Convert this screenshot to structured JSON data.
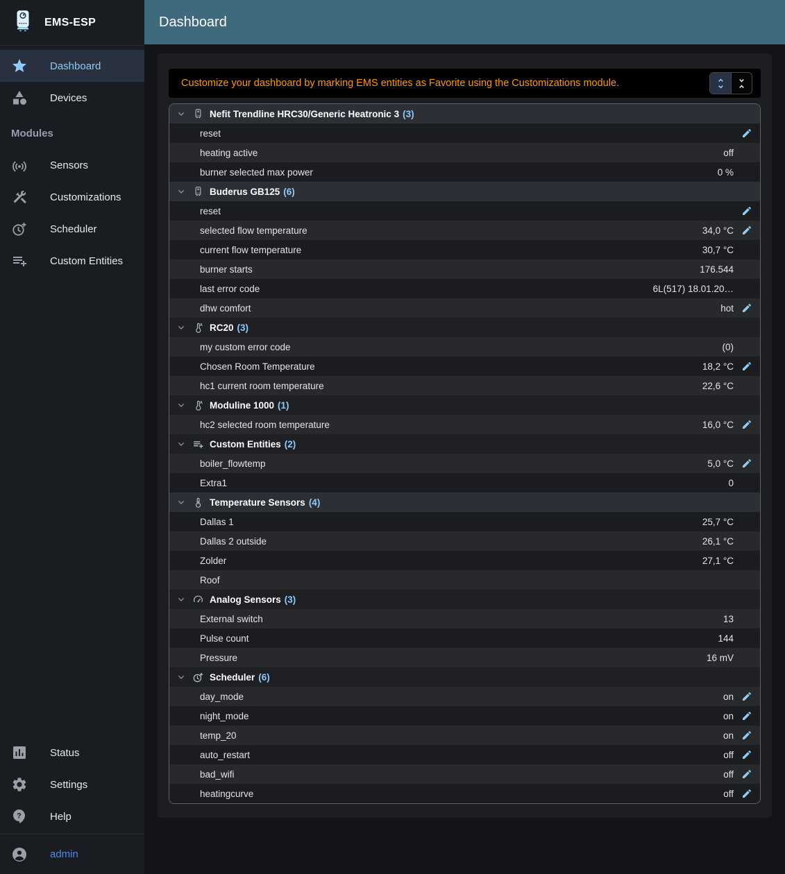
{
  "app": {
    "name": "EMS-ESP"
  },
  "appbar": {
    "title": "Dashboard"
  },
  "sidebar": {
    "main_items": [
      {
        "label": "Dashboard",
        "icon": "star",
        "active": true
      },
      {
        "label": "Devices",
        "icon": "category",
        "active": false
      }
    ],
    "section_label": "Modules",
    "module_items": [
      {
        "label": "Sensors",
        "icon": "sensors"
      },
      {
        "label": "Customizations",
        "icon": "construction"
      },
      {
        "label": "Scheduler",
        "icon": "more-time"
      },
      {
        "label": "Custom Entities",
        "icon": "playlist-add"
      }
    ],
    "bottom_items": [
      {
        "label": "Status",
        "icon": "assessment"
      },
      {
        "label": "Settings",
        "icon": "settings"
      },
      {
        "label": "Help",
        "icon": "help"
      }
    ],
    "user": {
      "label": "admin",
      "icon": "account-circle"
    }
  },
  "notice": {
    "text": "Customize your dashboard by marking EMS entities as Favorite using the Customizations module.",
    "controls": [
      {
        "name": "expand-all",
        "icon": "unfold-more",
        "selected": true
      },
      {
        "name": "collapse-all",
        "icon": "unfold-less",
        "selected": false
      }
    ]
  },
  "dashboard": {
    "groups": [
      {
        "name": "Nefit Trendline HRC30/Generic Heatronic 3",
        "count": 3,
        "icon": "water-heater",
        "rows": [
          {
            "label": "reset",
            "value": "",
            "editable": true
          },
          {
            "label": "heating active",
            "value": "off",
            "editable": false
          },
          {
            "label": "burner selected max power",
            "value": "0 %",
            "editable": false
          }
        ]
      },
      {
        "name": "Buderus GB125",
        "count": 6,
        "icon": "water-heater",
        "rows": [
          {
            "label": "reset",
            "value": "",
            "editable": true
          },
          {
            "label": "selected flow temperature",
            "value": "34,0 °C",
            "editable": true
          },
          {
            "label": "current flow temperature",
            "value": "30,7 °C",
            "editable": false
          },
          {
            "label": "burner starts",
            "value": "176.544",
            "editable": false
          },
          {
            "label": "last error code",
            "value": "6L(517) 18.01.20…",
            "editable": false
          },
          {
            "label": "dhw comfort",
            "value": "hot",
            "editable": true
          }
        ]
      },
      {
        "name": "RC20",
        "count": 3,
        "icon": "thermostat-auto",
        "rows": [
          {
            "label": "my custom error code",
            "value": "(0)",
            "editable": false
          },
          {
            "label": "Chosen Room Temperature",
            "value": "18,2 °C",
            "editable": true
          },
          {
            "label": "hc1 current room temperature",
            "value": "22,6 °C",
            "editable": false
          }
        ]
      },
      {
        "name": "Moduline 1000",
        "count": 1,
        "icon": "thermostat-auto",
        "rows": [
          {
            "label": "hc2 selected room temperature",
            "value": "16,0 °C",
            "editable": true
          }
        ]
      },
      {
        "name": "Custom Entities",
        "count": 2,
        "icon": "playlist-add",
        "rows": [
          {
            "label": "boiler_flowtemp",
            "value": "5,0 °C",
            "editable": true
          },
          {
            "label": "Extra1",
            "value": "0",
            "editable": false
          }
        ]
      },
      {
        "name": "Temperature Sensors",
        "count": 4,
        "icon": "thermometer",
        "rows": [
          {
            "label": "Dallas 1",
            "value": "25,7 °C",
            "editable": false
          },
          {
            "label": "Dallas 2 outside",
            "value": "26,1 °C",
            "editable": false
          },
          {
            "label": "Zolder",
            "value": "27,1 °C",
            "editable": false
          },
          {
            "label": "Roof",
            "value": "",
            "editable": false
          }
        ]
      },
      {
        "name": "Analog Sensors",
        "count": 3,
        "icon": "gauge",
        "rows": [
          {
            "label": "External switch",
            "value": "13",
            "editable": false
          },
          {
            "label": "Pulse count",
            "value": "144",
            "editable": false
          },
          {
            "label": "Pressure",
            "value": "16 mV",
            "editable": false
          }
        ]
      },
      {
        "name": "Scheduler",
        "count": 6,
        "icon": "more-time",
        "rows": [
          {
            "label": "day_mode",
            "value": "on",
            "editable": true
          },
          {
            "label": "night_mode",
            "value": "on",
            "editable": true
          },
          {
            "label": "temp_20",
            "value": "on",
            "editable": true
          },
          {
            "label": "auto_restart",
            "value": "off",
            "editable": true
          },
          {
            "label": "bad_wifi",
            "value": "off",
            "editable": true
          },
          {
            "label": "heatingcurve",
            "value": "off",
            "editable": true
          }
        ]
      }
    ]
  },
  "colors": {
    "appbar_teal": "#3f697c",
    "accent_blue": "#90caf9",
    "link_blue": "#4d8be4",
    "notice_orange": "#ff9800"
  }
}
